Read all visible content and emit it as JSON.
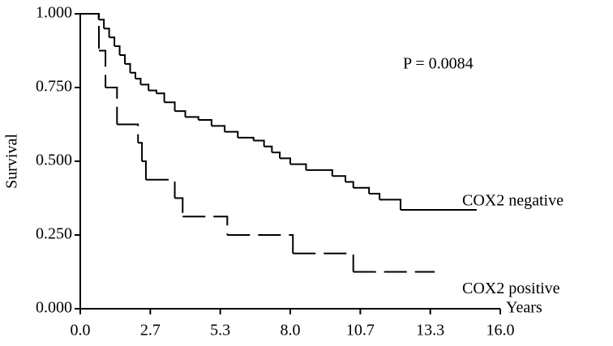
{
  "chart_data": {
    "type": "step",
    "annotation": "P = 0.0084",
    "xlabel": "Years",
    "ylabel": "Survival",
    "xlim": [
      0,
      16
    ],
    "ylim": [
      0,
      1
    ],
    "xticks": [
      {
        "value": 0,
        "label": "0.0"
      },
      {
        "value": 2.667,
        "label": "2.7"
      },
      {
        "value": 5.333,
        "label": "5.3"
      },
      {
        "value": 8,
        "label": "8.0"
      },
      {
        "value": 10.667,
        "label": "10.7"
      },
      {
        "value": 13.333,
        "label": "13.3"
      },
      {
        "value": 16,
        "label": "16.0"
      }
    ],
    "yticks": [
      {
        "value": 0,
        "label": "0.000"
      },
      {
        "value": 0.25,
        "label": "0.250"
      },
      {
        "value": 0.5,
        "label": "0.500"
      },
      {
        "value": 0.75,
        "label": "0.750"
      },
      {
        "value": 1,
        "label": "1.000"
      }
    ],
    "series": [
      {
        "name": "COX2 negative",
        "color": "#000000",
        "dashed": false,
        "x": [
          0,
          0.7,
          0.9,
          1.1,
          1.3,
          1.5,
          1.7,
          1.9,
          2.1,
          2.3,
          2.6,
          2.9,
          3.2,
          3.6,
          4.0,
          4.5,
          5.0,
          5.5,
          6.0,
          6.6,
          7.0,
          7.3,
          7.6,
          8.0,
          8.6,
          9.6,
          10.1,
          10.4,
          11.0,
          11.4,
          12.2,
          15.1
        ],
        "values": [
          1.0,
          0.98,
          0.95,
          0.92,
          0.89,
          0.86,
          0.83,
          0.8,
          0.78,
          0.76,
          0.74,
          0.73,
          0.7,
          0.67,
          0.65,
          0.64,
          0.62,
          0.6,
          0.58,
          0.57,
          0.55,
          0.53,
          0.51,
          0.49,
          0.47,
          0.45,
          0.43,
          0.41,
          0.39,
          0.37,
          0.335,
          0.335
        ]
      },
      {
        "name": "COX2 positive",
        "color": "#000000",
        "dashed": true,
        "x": [
          0,
          0.71,
          0.96,
          1.4,
          2.2,
          2.35,
          2.5,
          3.6,
          3.9,
          5.6,
          8.1,
          10.4,
          13.5
        ],
        "values": [
          1,
          0.875,
          0.75,
          0.625,
          0.5625,
          0.5,
          0.4375,
          0.375,
          0.3125,
          0.25,
          0.1875,
          0.125,
          0.125
        ]
      }
    ]
  }
}
